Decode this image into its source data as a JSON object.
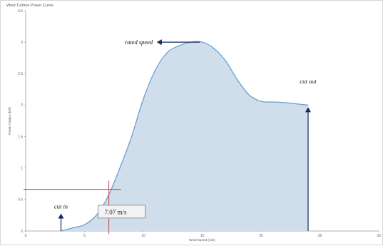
{
  "chart_data": {
    "type": "area",
    "title": "Wind Turbine Power Curve",
    "xlabel": "Wind Speed (m/s)",
    "ylabel": "Power Output (kW)",
    "xlim": [
      0,
      30
    ],
    "ylim": [
      0,
      3.5
    ],
    "x_ticks": [
      "0",
      "5",
      "10",
      "15",
      "20",
      "25",
      "30"
    ],
    "y_ticks": [
      "0",
      "0.5",
      "1",
      "1.5",
      "2",
      "2.5",
      "3",
      "3.5"
    ],
    "grid": false,
    "series": [
      {
        "x": [
          3,
          4,
          5,
          6,
          7,
          8,
          9,
          10,
          11,
          12,
          13,
          14,
          15,
          16,
          17,
          18,
          19,
          20,
          21,
          22,
          23,
          24
        ],
        "y": [
          0,
          0.05,
          0.1,
          0.25,
          0.55,
          1.0,
          1.5,
          2.1,
          2.55,
          2.83,
          2.94,
          3.0,
          3.0,
          2.9,
          2.7,
          2.4,
          2.16,
          2.06,
          2.05,
          2.04,
          2.02,
          2.0
        ]
      }
    ],
    "colors": {
      "line": "#6a9fd6",
      "fill": "#cfdeea",
      "arrow": "#0e2a5e",
      "guide": "#c83232"
    },
    "annotations": [
      {
        "text": "cut in",
        "x": 3,
        "y": 0.3
      },
      {
        "text": "rated speed",
        "x": 12,
        "y": 3.0
      },
      {
        "text": "cut out",
        "x": 24,
        "y": 2.3
      },
      {
        "text": "7.07 m/s",
        "x": 7.07,
        "y": 0.66
      }
    ]
  }
}
